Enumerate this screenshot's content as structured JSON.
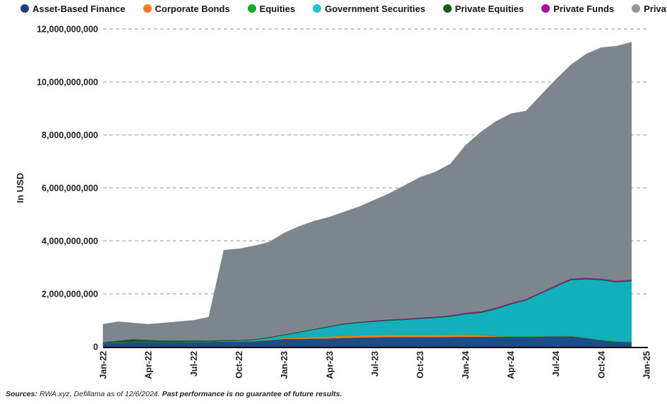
{
  "chart_data": {
    "type": "area",
    "stacked": true,
    "title": "",
    "ylabel": "In USD",
    "values_unit": "USD billions",
    "ylim": [
      0,
      12
    ],
    "y_tick_step": 2,
    "grid": "dashed-horizontal",
    "legend_position": "top",
    "x": [
      "Jan-22",
      "Feb-22",
      "Mar-22",
      "Apr-22",
      "May-22",
      "Jun-22",
      "Jul-22",
      "Aug-22",
      "Sep-22",
      "Oct-22",
      "Nov-22",
      "Dec-22",
      "Jan-23",
      "Feb-23",
      "Mar-23",
      "Apr-23",
      "May-23",
      "Jun-23",
      "Jul-23",
      "Aug-23",
      "Sep-23",
      "Oct-23",
      "Nov-23",
      "Dec-23",
      "Jan-24",
      "Feb-24",
      "Mar-24",
      "Apr-24",
      "May-24",
      "Jun-24",
      "Jul-24",
      "Aug-24",
      "Sep-24",
      "Oct-24",
      "Nov-24",
      "Dec-24"
    ],
    "x_ticks": [
      "Jan-22",
      "Apr-22",
      "Jul-22",
      "Oct-22",
      "Jan-23",
      "Apr-23",
      "Jul-23",
      "Oct-23",
      "Jan-24",
      "Apr-24",
      "Jul-24",
      "Oct-24",
      "Jan-25"
    ],
    "series": [
      {
        "name": "Asset-Based Finance",
        "color": "#1d4d89",
        "legend_color": "#1d4080",
        "values": [
          0.15,
          0.16,
          0.17,
          0.18,
          0.18,
          0.18,
          0.19,
          0.19,
          0.2,
          0.2,
          0.21,
          0.25,
          0.3,
          0.3,
          0.31,
          0.32,
          0.34,
          0.35,
          0.36,
          0.37,
          0.37,
          0.37,
          0.37,
          0.37,
          0.38,
          0.38,
          0.38,
          0.38,
          0.38,
          0.39,
          0.4,
          0.4,
          0.33,
          0.25,
          0.2,
          0.18
        ]
      },
      {
        "name": "Corporate Bonds",
        "color": "#f47b20",
        "legend_color": "#f47b20",
        "values": [
          0,
          0,
          0,
          0,
          0,
          0,
          0,
          0,
          0,
          0,
          0.01,
          0.02,
          0.03,
          0.05,
          0.06,
          0.07,
          0.08,
          0.08,
          0.08,
          0.08,
          0.08,
          0.08,
          0.08,
          0.08,
          0.08,
          0.06,
          0.02,
          0,
          0,
          0,
          0,
          0,
          0,
          0,
          0,
          0
        ]
      },
      {
        "name": "Equities",
        "color": "#0fae26",
        "legend_color": "#0fae26",
        "values": [
          0.005,
          0.005,
          0.005,
          0.005,
          0.005,
          0.01,
          0.01,
          0.01,
          0.01,
          0.01,
          0.01,
          0.01,
          0.01,
          0.01,
          0.01,
          0.01,
          0.01,
          0.01,
          0.01,
          0.01,
          0.01,
          0.01,
          0.01,
          0.01,
          0.02,
          0.02,
          0.02,
          0.02,
          0.02,
          0.02,
          0.02,
          0.02,
          0.02,
          0.02,
          0.02,
          0.02
        ]
      },
      {
        "name": "Government Securities",
        "color": "#12b0bd",
        "legend_color": "#2dc2cc",
        "values": [
          0,
          0,
          0,
          0,
          0,
          0,
          0,
          0,
          0.01,
          0.02,
          0.03,
          0.06,
          0.1,
          0.18,
          0.27,
          0.35,
          0.42,
          0.47,
          0.5,
          0.53,
          0.56,
          0.6,
          0.63,
          0.68,
          0.75,
          0.82,
          1.0,
          1.2,
          1.35,
          1.6,
          1.85,
          2.1,
          2.2,
          2.25,
          2.22,
          2.28
        ]
      },
      {
        "name": "Private Equities",
        "color": "#155c23",
        "legend_color": "#155c23",
        "values": [
          0.02,
          0.07,
          0.12,
          0.08,
          0.06,
          0.05,
          0.05,
          0.04,
          0.04,
          0.03,
          0.03,
          0.03,
          0.03,
          0.03,
          0.03,
          0.03,
          0.03,
          0.03,
          0.03,
          0.03,
          0.03,
          0.03,
          0.03,
          0.03,
          0.03,
          0.03,
          0.03,
          0.03,
          0.03,
          0.03,
          0.03,
          0.03,
          0.03,
          0.03,
          0.03,
          0.03
        ]
      },
      {
        "name": "Private Funds",
        "color": "#a8119f",
        "legend_color": "#a8119f",
        "values": [
          0,
          0,
          0,
          0,
          0,
          0,
          0,
          0,
          0,
          0,
          0,
          0,
          0,
          0,
          0,
          0.01,
          0.01,
          0.01,
          0.02,
          0.02,
          0.02,
          0.02,
          0.02,
          0.02,
          0.03,
          0.03,
          0.03,
          0.03,
          0.03,
          0.03,
          0.03,
          0.03,
          0.03,
          0.03,
          0.03,
          0.03
        ]
      },
      {
        "name": "Private Credit",
        "color": "#7d858d",
        "legend_color": "#8f969c",
        "values": [
          0.675,
          0.715,
          0.605,
          0.585,
          0.655,
          0.71,
          0.75,
          0.88,
          3.39,
          3.44,
          3.52,
          3.58,
          3.83,
          3.98,
          4.07,
          4.11,
          4.21,
          4.35,
          4.55,
          4.76,
          5.03,
          5.29,
          5.46,
          5.71,
          6.31,
          6.76,
          7.02,
          7.14,
          7.09,
          7.43,
          7.77,
          8.07,
          8.44,
          8.72,
          8.85,
          8.96
        ]
      }
    ]
  },
  "footer": {
    "sources_label": "Sources:",
    "sources_text": "RWA.xyz, Defillama as of 12/6/2024.",
    "disclaimer": "Past performance is no guarantee of future results."
  }
}
